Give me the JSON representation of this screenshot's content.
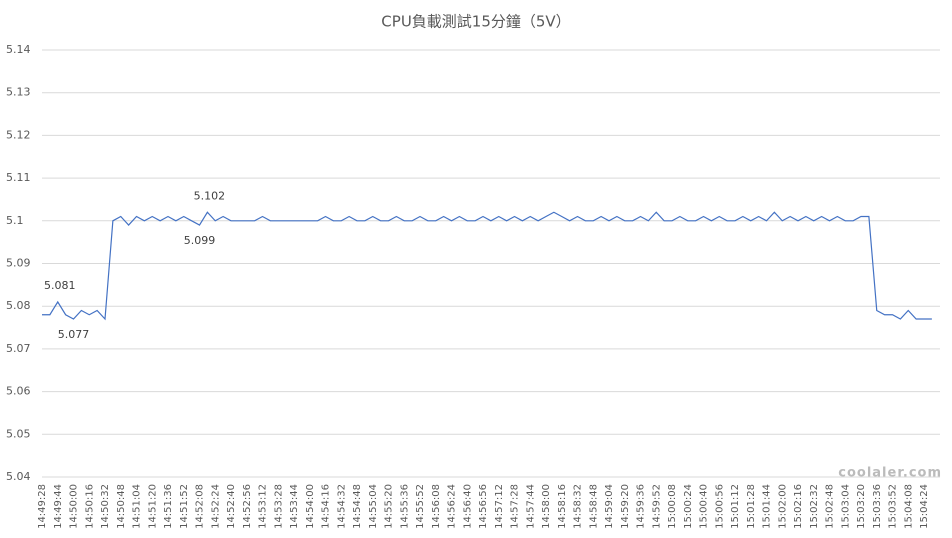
{
  "chart_data": {
    "type": "line",
    "title": "CPU負載測試15分鐘（5V）",
    "categories": [
      "14:49:28",
      null,
      "14:49:44",
      null,
      "14:50:00",
      null,
      "14:50:16",
      null,
      "14:50:32",
      null,
      "14:50:48",
      null,
      "14:51:04",
      null,
      "14:51:20",
      null,
      "14:51:36",
      null,
      "14:51:52",
      null,
      "14:52:08",
      null,
      "14:52:24",
      null,
      "14:52:40",
      null,
      "14:52:56",
      null,
      "14:53:12",
      null,
      "14:53:28",
      null,
      "14:53:44",
      null,
      "14:54:00",
      null,
      "14:54:16",
      null,
      "14:54:32",
      null,
      "14:54:48",
      null,
      "14:55:04",
      null,
      "14:55:20",
      null,
      "14:55:36",
      null,
      "14:55:52",
      null,
      "14:56:08",
      null,
      "14:56:24",
      null,
      "14:56:40",
      null,
      "14:56:56",
      null,
      "14:57:12",
      null,
      "14:57:28",
      null,
      "14:57:44",
      null,
      "14:58:00",
      null,
      "14:58:16",
      null,
      "14:58:32",
      null,
      "14:58:48",
      null,
      "14:59:04",
      null,
      "14:59:20",
      null,
      "14:59:36",
      null,
      "14:59:52",
      null,
      "15:00:08",
      null,
      "15:00:24",
      null,
      "15:00:40",
      null,
      "15:00:56",
      null,
      "15:01:12",
      null,
      "15:01:28",
      null,
      "15:01:44",
      null,
      "15:02:00",
      null,
      "15:02:16",
      null,
      "15:02:32",
      null,
      "15:02:48",
      null,
      "15:03:04",
      null,
      "15:03:20",
      null,
      "15:03:36",
      null,
      "15:03:52",
      null,
      "15:04:08",
      null,
      "15:04:24",
      null
    ],
    "values": [
      5.078,
      5.078,
      5.081,
      5.078,
      5.077,
      5.079,
      5.078,
      5.079,
      5.077,
      5.1,
      5.101,
      5.099,
      5.101,
      5.1,
      5.101,
      5.1,
      5.101,
      5.1,
      5.101,
      5.1,
      5.099,
      5.102,
      5.1,
      5.101,
      5.1,
      5.1,
      5.1,
      5.1,
      5.101,
      5.1,
      5.1,
      5.1,
      5.1,
      5.1,
      5.1,
      5.1,
      5.101,
      5.1,
      5.1,
      5.101,
      5.1,
      5.1,
      5.101,
      5.1,
      5.1,
      5.101,
      5.1,
      5.1,
      5.101,
      5.1,
      5.1,
      5.101,
      5.1,
      5.101,
      5.1,
      5.1,
      5.101,
      5.1,
      5.101,
      5.1,
      5.101,
      5.1,
      5.101,
      5.1,
      5.101,
      5.102,
      5.101,
      5.1,
      5.101,
      5.1,
      5.1,
      5.101,
      5.1,
      5.101,
      5.1,
      5.1,
      5.101,
      5.1,
      5.102,
      5.1,
      5.1,
      5.101,
      5.1,
      5.1,
      5.101,
      5.1,
      5.101,
      5.1,
      5.1,
      5.101,
      5.1,
      5.101,
      5.1,
      5.102,
      5.1,
      5.101,
      5.1,
      5.101,
      5.1,
      5.101,
      5.1,
      5.101,
      5.1,
      5.1,
      5.101,
      5.101,
      5.079,
      5.078,
      5.078,
      5.077,
      5.079,
      5.077,
      5.077,
      5.077
    ],
    "value_labels": [
      null,
      null,
      "5.081",
      null,
      "5.077",
      null,
      null,
      null,
      null,
      null,
      null,
      null,
      null,
      null,
      null,
      null,
      null,
      null,
      null,
      null,
      "5.099",
      "5.102",
      null,
      null,
      null,
      null,
      null,
      null,
      null,
      null,
      null,
      null,
      null,
      null,
      null,
      null,
      null,
      null,
      null,
      null,
      null,
      null,
      null,
      null,
      null,
      null,
      null,
      null,
      null,
      null,
      null,
      null,
      null,
      null,
      null,
      null,
      null,
      null,
      null,
      null,
      null,
      null,
      null,
      null,
      null,
      null,
      null,
      null,
      null,
      null,
      null,
      null,
      null,
      null,
      null,
      null,
      null,
      null,
      null,
      null,
      null,
      null,
      null,
      null,
      null,
      null,
      null,
      null,
      null,
      null,
      null,
      null,
      null,
      null,
      null,
      null,
      null,
      null,
      null,
      null,
      null,
      null,
      null,
      null,
      null,
      null,
      null,
      null,
      null,
      null,
      null,
      null,
      null,
      null
    ],
    "color": "#4472c4",
    "ylim": [
      5.04,
      5.14
    ],
    "yticks": [
      5.04,
      5.05,
      5.06,
      5.07,
      5.08,
      5.09,
      5.1,
      5.11,
      5.12,
      5.13,
      5.14
    ],
    "grid": true
  },
  "watermark": "coolaler.com"
}
